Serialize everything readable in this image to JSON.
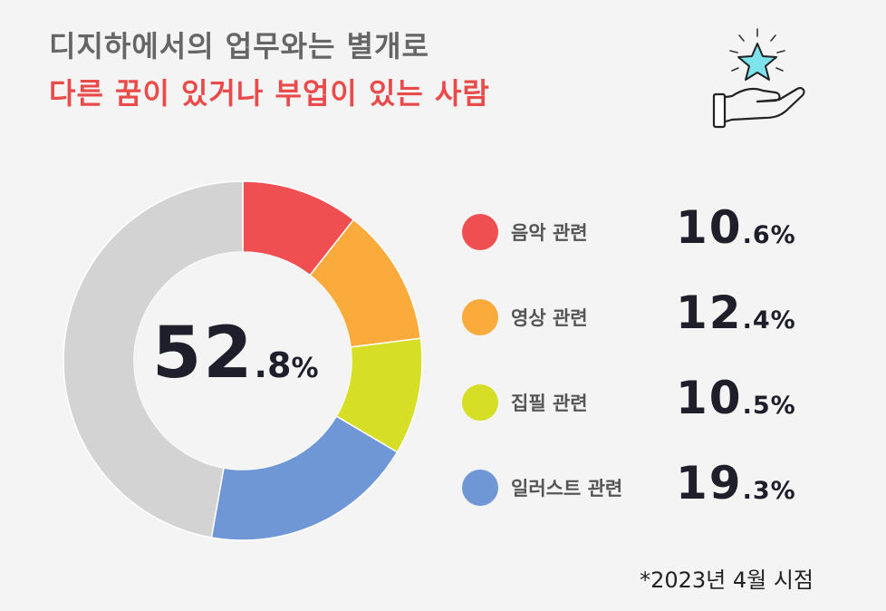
{
  "header": {
    "line1": "디지하에서의 업무와는 별개로",
    "line2": "다른 꿈이 있거나 부업이 있는 사람"
  },
  "icon": "hand-holding-star-icon",
  "center": {
    "integer": "52",
    "decimal": ".8",
    "unit": "%"
  },
  "legend": [
    {
      "label": "음악 관련",
      "integer": "10",
      "decimal": ".6",
      "unit": "%"
    },
    {
      "label": "영상 관련",
      "integer": "12",
      "decimal": ".4",
      "unit": "%"
    },
    {
      "label": "집필 관련",
      "integer": "10",
      "decimal": ".5",
      "unit": "%"
    },
    {
      "label": "일러스트 관련",
      "integer": "19",
      "decimal": ".3",
      "unit": "%"
    }
  ],
  "footnote": "*2023년 4월 시점",
  "chart_data": {
    "type": "pie",
    "categories": [
      "음악 관련",
      "영상 관련",
      "집필 관련",
      "일러스트 관련"
    ],
    "values": [
      10.6,
      12.4,
      10.5,
      19.3
    ],
    "remainder": 47.2,
    "total": 52.8,
    "colors": [
      "#ef4f50",
      "#fbaa3c",
      "#d6de25",
      "#6f97d6"
    ],
    "remainder_color": "#d3d3d3",
    "start": "12 o'clock, clockwise",
    "style": "donut"
  }
}
